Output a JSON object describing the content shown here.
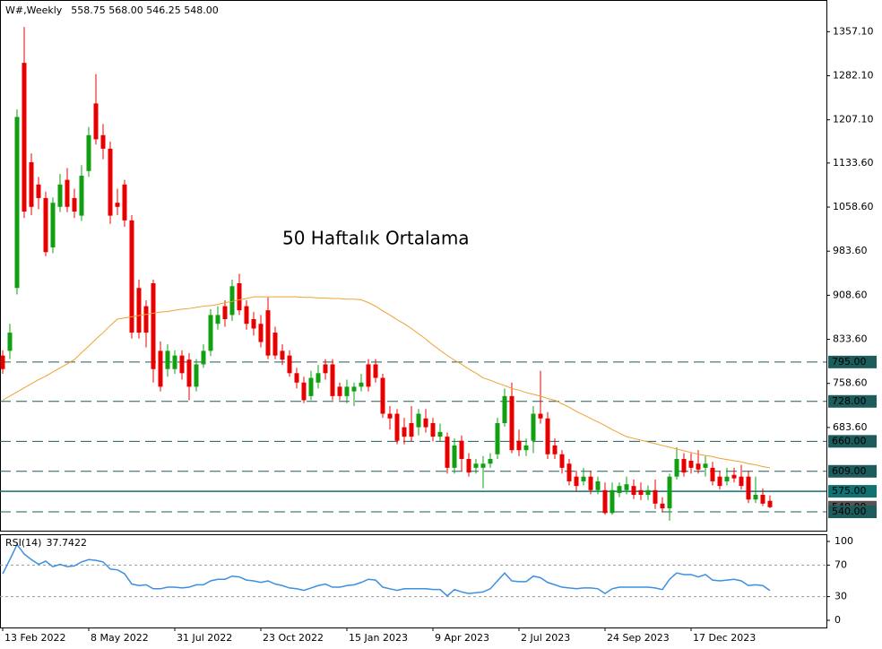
{
  "chart_data": [
    {
      "type": "candlestick",
      "title": "W#,Weekly",
      "ohlc_label": "558.75 568.00 546.25 548.00",
      "categories": [
        "13 Feb 2022",
        null,
        null,
        null,
        null,
        null,
        null,
        null,
        null,
        null,
        null,
        null,
        "8 May 2022",
        null,
        null,
        null,
        null,
        null,
        null,
        null,
        null,
        null,
        null,
        null,
        "31 Jul 2022",
        null,
        null,
        null,
        null,
        null,
        null,
        null,
        null,
        null,
        null,
        null,
        "23 Oct 2022",
        null,
        null,
        null,
        null,
        null,
        null,
        null,
        null,
        null,
        null,
        null,
        "15 Jan 2023",
        null,
        null,
        null,
        null,
        null,
        null,
        null,
        null,
        null,
        null,
        null,
        "9 Apr 2023",
        null,
        null,
        null,
        null,
        null,
        null,
        null,
        null,
        null,
        null,
        null,
        "2 Jul 2023",
        null,
        null,
        null,
        null,
        null,
        null,
        null,
        null,
        null,
        null,
        null,
        "24 Sep 2023",
        null,
        null,
        null,
        null,
        null,
        null,
        null,
        null,
        null,
        null,
        null,
        "17 Dec 2023",
        null,
        null,
        null,
        null,
        null,
        null,
        null,
        null,
        null,
        null,
        null
      ],
      "open": [
        806,
        814,
        921,
        1304,
        1135,
        1097,
        1074,
        990,
        1059,
        1105,
        1074,
        1044,
        1120,
        1235,
        1181,
        1158,
        1066,
        1097,
        1036,
        921,
        890,
        929,
        814,
        783,
        783,
        806,
        799,
        753,
        791,
        814,
        860,
        890,
        875,
        929,
        890,
        868,
        860,
        883,
        845,
        814,
        806,
        776,
        760,
        737,
        760,
        791,
        791,
        753,
        737,
        745,
        753,
        791,
        791,
        768,
        707,
        707,
        684,
        691,
        684,
        699,
        691,
        668,
        668,
        615,
        661,
        630,
        615,
        615,
        622,
        638,
        691,
        737,
        661,
        645,
        661,
        707,
        699,
        653,
        638,
        622,
        600,
        592,
        600,
        577,
        577,
        538,
        572,
        577,
        584,
        577,
        569,
        577,
        554,
        546,
        600,
        630,
        627,
        622,
        615,
        615,
        600,
        592,
        603,
        600,
        600,
        561,
        569,
        558.75
      ],
      "high": [
        815,
        860,
        1225,
        1365,
        1150,
        1110,
        1085,
        1075,
        1115,
        1125,
        1090,
        1130,
        1195,
        1285,
        1200,
        1170,
        1090,
        1105,
        1045,
        935,
        900,
        935,
        830,
        825,
        815,
        815,
        810,
        800,
        825,
        885,
        890,
        900,
        935,
        945,
        900,
        880,
        875,
        905,
        855,
        825,
        815,
        785,
        770,
        780,
        790,
        800,
        800,
        760,
        765,
        760,
        775,
        800,
        800,
        775,
        720,
        715,
        700,
        720,
        715,
        715,
        700,
        690,
        675,
        665,
        670,
        640,
        630,
        635,
        640,
        700,
        750,
        760,
        680,
        665,
        720,
        780,
        710,
        665,
        645,
        630,
        610,
        615,
        610,
        600,
        590,
        590,
        590,
        600,
        595,
        590,
        585,
        595,
        565,
        605,
        650,
        640,
        640,
        645,
        635,
        625,
        610,
        615,
        615,
        620,
        610,
        600,
        580,
        568
      ],
      "low": [
        775,
        800,
        910,
        1040,
        1045,
        1055,
        975,
        980,
        1050,
        1050,
        1040,
        1035,
        1110,
        1165,
        1140,
        1030,
        1045,
        1025,
        835,
        835,
        820,
        760,
        745,
        770,
        775,
        765,
        730,
        745,
        785,
        805,
        850,
        855,
        865,
        875,
        850,
        840,
        820,
        800,
        800,
        790,
        770,
        750,
        725,
        730,
        750,
        765,
        730,
        730,
        725,
        720,
        745,
        745,
        760,
        700,
        680,
        655,
        655,
        660,
        670,
        675,
        660,
        660,
        605,
        605,
        610,
        600,
        605,
        580,
        615,
        630,
        685,
        640,
        635,
        635,
        640,
        690,
        630,
        630,
        605,
        585,
        575,
        585,
        570,
        570,
        535,
        535,
        565,
        570,
        562,
        560,
        560,
        545,
        540,
        525,
        595,
        600,
        605,
        605,
        600,
        585,
        578,
        585,
        590,
        578,
        555,
        555,
        550,
        546.25
      ],
      "close": [
        783,
        845,
        1212,
        1051,
        1059,
        1074,
        982,
        1066,
        1097,
        1059,
        1051,
        1112,
        1181,
        1174,
        1158,
        1044,
        1059,
        1036,
        845,
        845,
        845,
        783,
        753,
        814,
        806,
        776,
        753,
        791,
        814,
        875,
        875,
        868,
        924,
        883,
        860,
        852,
        829,
        806,
        806,
        799,
        776,
        760,
        730,
        768,
        776,
        776,
        737,
        737,
        753,
        753,
        760,
        753,
        768,
        707,
        699,
        661,
        668,
        668,
        707,
        684,
        668,
        676,
        615,
        653,
        630,
        607,
        622,
        622,
        630,
        691,
        737,
        645,
        645,
        653,
        707,
        699,
        638,
        638,
        615,
        592,
        584,
        600,
        577,
        592,
        538,
        577,
        584,
        587,
        569,
        569,
        577,
        554,
        546,
        600,
        630,
        607,
        615,
        612,
        622,
        592,
        584,
        600,
        597,
        584,
        561,
        569,
        554,
        548
      ],
      "up_color": "#12a012",
      "down_color": "#e80000",
      "moving_average": {
        "color": "#f0a030",
        "values": [
          730,
          737,
          744,
          751,
          758,
          765,
          771,
          778,
          785,
          792,
          799,
          811,
          822,
          834,
          845,
          857,
          868,
          870,
          872,
          874,
          876,
          878,
          880,
          881,
          883,
          885,
          886,
          888,
          890,
          891,
          893,
          896,
          898,
          901,
          903,
          906,
          906,
          906,
          906,
          906,
          906,
          906,
          905,
          905,
          904,
          904,
          903,
          903,
          902,
          902,
          901,
          896,
          890,
          882,
          875,
          867,
          860,
          852,
          843,
          834,
          824,
          815,
          806,
          798,
          791,
          783,
          776,
          768,
          764,
          759,
          755,
          750,
          747,
          743,
          740,
          737,
          733,
          730,
          724,
          718,
          711,
          705,
          699,
          693,
          687,
          680,
          674,
          668,
          665,
          662,
          659,
          656,
          653,
          650,
          647,
          644,
          641,
          638,
          636,
          634,
          631,
          629,
          627,
          625,
          622,
          620,
          617,
          615
        ]
      },
      "annotation": {
        "text": "50 Haftalık Ortalama",
        "color": "#f28c1e"
      },
      "ylim": [
        508,
        1411
      ],
      "yticks": [
        {
          "value": 1357.1,
          "label": "1357.10"
        },
        {
          "value": 1282.1,
          "label": "1282.10"
        },
        {
          "value": 1207.1,
          "label": "1207.10"
        },
        {
          "value": 1133.6,
          "label": "1133.60"
        },
        {
          "value": 1058.6,
          "label": "1058.60"
        },
        {
          "value": 983.6,
          "label": "983.60"
        },
        {
          "value": 908.6,
          "label": "908.60"
        },
        {
          "value": 833.6,
          "label": "833.60"
        },
        {
          "value": 758.6,
          "label": "758.60"
        },
        {
          "value": 683.6,
          "label": "683.60"
        }
      ],
      "levels": [
        {
          "value": 795,
          "label": "795.00",
          "style": "dashed",
          "color": "#1d5c5c"
        },
        {
          "value": 728,
          "label": "728.00",
          "style": "dashed",
          "color": "#1d5c5c"
        },
        {
          "value": 660,
          "label": "660.00",
          "style": "dashed",
          "color": "#1d5c5c"
        },
        {
          "value": 609,
          "label": "609.00",
          "style": "dashed",
          "color": "#1d5c5c"
        },
        {
          "value": 575,
          "label": "575.00",
          "style": "solid",
          "color": "#117070"
        },
        {
          "value": 548,
          "label": "548.00",
          "style": "none",
          "color": "#555555"
        },
        {
          "value": 540,
          "label": "540.00",
          "style": "dashed",
          "color": "#1d5c5c"
        }
      ]
    },
    {
      "type": "line",
      "title": "RSI(14)",
      "color": "#3d8fe0",
      "values": [
        59,
        77,
        96,
        84,
        77,
        71,
        75,
        68,
        71,
        68,
        69,
        74,
        77,
        76,
        74,
        65,
        64,
        59,
        46,
        44,
        45,
        40,
        40,
        42,
        42,
        41,
        42,
        45,
        45,
        50,
        52,
        52,
        56,
        55,
        51,
        50,
        48,
        50,
        46,
        44,
        41,
        40,
        38,
        41,
        44,
        46,
        42,
        42,
        44,
        45,
        48,
        52,
        51,
        42,
        40,
        38,
        40,
        40,
        40,
        40,
        39,
        39,
        31,
        39,
        36,
        34,
        35,
        36,
        40,
        50,
        60,
        50,
        49,
        49,
        56,
        54,
        48,
        45,
        42,
        41,
        40,
        41,
        41,
        40,
        34,
        40,
        42,
        42,
        42,
        42,
        42,
        41,
        39,
        52,
        60,
        58,
        58,
        55,
        58,
        51,
        50,
        51,
        52,
        50,
        44,
        45,
        44,
        37.7422
      ],
      "ylim": [
        -9.1,
        109.1
      ],
      "yticks": [
        100,
        70,
        30,
        0
      ],
      "dashed_grid": [
        70,
        30
      ]
    }
  ]
}
